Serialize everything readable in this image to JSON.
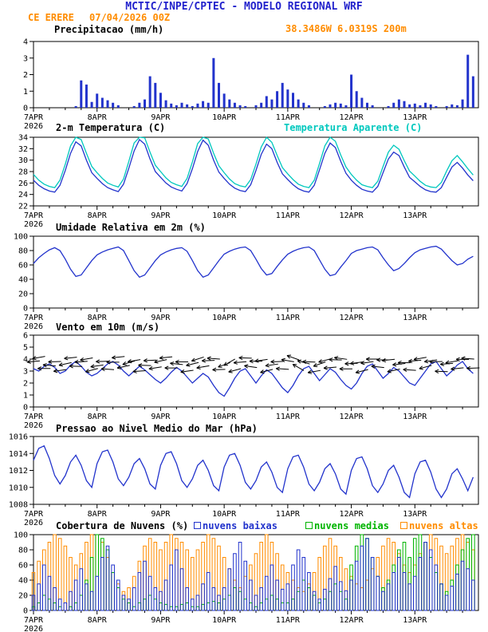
{
  "header": {
    "title": "MCTIC/INPE/CPTEC - MODELO REGIONAL WRF",
    "station": "CE ERERE",
    "run": "07/04/2026 00Z",
    "location": "38.3486W 6.0319S 200m"
  },
  "colors": {
    "header_blue": "#2222cc",
    "orange": "#ff8c00",
    "line_blue": "#2233cc",
    "cyan": "#00c8be",
    "green": "#00b400",
    "black": "#000000"
  },
  "xaxis": {
    "tick_hours": [
      0,
      24,
      48,
      72,
      96,
      120,
      144
    ],
    "labels": [
      "7APR",
      "8APR",
      "9APR",
      "10APR",
      "11APR",
      "12APR",
      "13APR"
    ],
    "year": "2026",
    "total_hours": 168,
    "minor_step": 6
  },
  "time_step_hours": 2,
  "chart_data": [
    {
      "type": "bar",
      "title": "Precipitacao (mm/h)",
      "ylabel": "mm/h",
      "ylim": [
        0,
        4
      ],
      "yticks": [
        0,
        1,
        2,
        3,
        4
      ],
      "color": "#2233cc",
      "values": [
        0,
        0,
        0,
        0,
        0,
        0,
        0,
        0,
        0.1,
        1.65,
        1.4,
        0.35,
        0.85,
        0.6,
        0.45,
        0.3,
        0.15,
        0,
        0,
        0.1,
        0.3,
        0.5,
        1.9,
        1.5,
        0.9,
        0.45,
        0.25,
        0.15,
        0.3,
        0.2,
        0.1,
        0.25,
        0.4,
        0.3,
        3.0,
        1.5,
        0.85,
        0.5,
        0.3,
        0.15,
        0.1,
        0,
        0.15,
        0.3,
        0.7,
        0.5,
        1.0,
        1.5,
        1.1,
        0.9,
        0.5,
        0.3,
        0.15,
        0,
        0,
        0.1,
        0.2,
        0.3,
        0.25,
        0.15,
        2.0,
        1.0,
        0.6,
        0.3,
        0.15,
        0,
        0,
        0.1,
        0.3,
        0.5,
        0.4,
        0.2,
        0.25,
        0.15,
        0.3,
        0.2,
        0.1,
        0,
        0.1,
        0.2,
        0.15,
        0.5,
        3.2,
        1.9
      ]
    },
    {
      "type": "line",
      "title": "2-m Temperatura (C)",
      "title_right": "Temperatura Aparente (C)",
      "ylim": [
        22,
        34
      ],
      "yticks": [
        22,
        24,
        26,
        28,
        30,
        32,
        34
      ],
      "series": [
        {
          "name": "2-m Temperatura (C)",
          "color": "#2233cc",
          "values": [
            26.5,
            25.6,
            25.0,
            24.6,
            24.4,
            25.6,
            28.2,
            31.2,
            33.2,
            32.5,
            30.0,
            27.8,
            26.8,
            25.9,
            25.2,
            24.8,
            24.5,
            25.8,
            28.6,
            31.6,
            33.6,
            32.8,
            30.2,
            28.0,
            27.0,
            26.0,
            25.3,
            24.9,
            24.6,
            25.9,
            28.5,
            31.5,
            33.5,
            32.6,
            30.0,
            27.9,
            26.8,
            25.8,
            25.1,
            24.7,
            24.5,
            25.7,
            28.2,
            31.0,
            32.8,
            32.0,
            29.6,
            27.6,
            26.6,
            25.7,
            25.0,
            24.6,
            24.4,
            25.6,
            28.3,
            31.2,
            33.0,
            32.2,
            29.8,
            27.7,
            26.5,
            25.6,
            24.9,
            24.6,
            24.4,
            25.4,
            27.8,
            30.2,
            31.4,
            30.8,
            28.8,
            27.0,
            26.2,
            25.4,
            24.8,
            24.5,
            24.4,
            25.2,
            27.0,
            28.8,
            29.6,
            28.6,
            27.4,
            26.4
          ]
        },
        {
          "name": "Temperatura Aparente (C)",
          "color": "#00c8be",
          "values": [
            27.5,
            26.5,
            25.8,
            25.4,
            25.2,
            26.5,
            29.3,
            32.5,
            34.2,
            33.6,
            31.2,
            28.9,
            27.8,
            26.8,
            26.0,
            25.6,
            25.3,
            26.7,
            29.8,
            33.0,
            34.3,
            33.9,
            31.4,
            29.1,
            28.0,
            26.9,
            26.1,
            25.7,
            25.4,
            26.8,
            29.7,
            32.9,
            34.3,
            33.7,
            31.2,
            29.0,
            27.8,
            26.7,
            25.9,
            25.5,
            25.3,
            26.6,
            29.3,
            32.3,
            34.0,
            33.1,
            30.8,
            28.7,
            27.6,
            26.6,
            25.8,
            25.4,
            25.2,
            26.5,
            29.4,
            32.5,
            34.1,
            33.3,
            30.9,
            28.8,
            27.5,
            26.5,
            25.7,
            25.4,
            25.2,
            26.3,
            28.9,
            31.4,
            32.6,
            31.9,
            29.9,
            28.1,
            27.2,
            26.3,
            25.6,
            25.3,
            25.2,
            26.1,
            28.1,
            29.9,
            30.8,
            29.7,
            28.5,
            27.4
          ]
        }
      ]
    },
    {
      "type": "line",
      "title": "Umidade Relativa em 2m (%)",
      "ylim": [
        0,
        100
      ],
      "yticks": [
        0,
        20,
        40,
        60,
        80,
        100
      ],
      "series": [
        {
          "name": "Umidade Relativa em 2m (%)",
          "color": "#2233cc",
          "values": [
            62,
            70,
            76,
            81,
            84,
            80,
            68,
            54,
            44,
            46,
            56,
            66,
            74,
            78,
            81,
            83,
            85,
            80,
            66,
            52,
            43,
            46,
            56,
            66,
            74,
            78,
            81,
            83,
            84,
            79,
            66,
            52,
            43,
            46,
            56,
            66,
            75,
            79,
            82,
            84,
            85,
            80,
            68,
            55,
            46,
            48,
            58,
            67,
            75,
            79,
            82,
            84,
            85,
            80,
            67,
            54,
            45,
            47,
            57,
            66,
            76,
            80,
            82,
            84,
            85,
            81,
            70,
            60,
            52,
            55,
            62,
            70,
            77,
            81,
            83,
            85,
            86,
            82,
            74,
            66,
            60,
            62,
            68,
            72
          ]
        }
      ]
    },
    {
      "type": "wind",
      "title": "Vento em 10m (m/s)",
      "ylim": [
        0,
        6
      ],
      "yticks": [
        0,
        1,
        2,
        3,
        4,
        5,
        6
      ],
      "line_color": "#2233cc",
      "arrow_color": "#000000",
      "speed": [
        3.2,
        3.0,
        3.4,
        3.6,
        3.3,
        2.8,
        3.0,
        3.5,
        3.8,
        3.4,
        2.9,
        2.6,
        2.8,
        3.2,
        3.6,
        3.8,
        3.5,
        3.0,
        2.6,
        3.0,
        3.4,
        3.1,
        2.7,
        2.3,
        2.0,
        2.4,
        2.9,
        3.3,
        3.0,
        2.5,
        2.0,
        2.4,
        2.8,
        2.5,
        1.8,
        1.2,
        0.9,
        1.6,
        2.4,
        3.0,
        3.2,
        2.6,
        2.0,
        2.6,
        3.1,
        2.8,
        2.2,
        1.6,
        1.2,
        1.8,
        2.6,
        3.2,
        3.4,
        2.8,
        2.2,
        2.7,
        3.2,
        2.9,
        2.3,
        1.8,
        1.5,
        2.0,
        2.8,
        3.4,
        3.6,
        3.0,
        2.4,
        2.8,
        3.3,
        3.0,
        2.5,
        2.0,
        1.8,
        2.4,
        3.0,
        3.6,
        3.8,
        3.2,
        2.6,
        3.0,
        3.5,
        3.8,
        3.2,
        2.8
      ],
      "dir_deg": [
        185,
        190,
        180,
        175,
        182,
        188,
        192,
        186,
        178,
        184,
        190,
        195,
        188,
        182,
        176,
        180,
        186,
        192,
        196,
        190,
        184,
        178,
        183,
        189,
        192,
        186,
        180,
        174,
        180,
        188,
        194,
        198,
        190,
        182,
        176,
        182,
        200,
        210,
        195,
        185,
        178,
        172,
        180,
        188,
        194,
        188,
        182,
        176,
        170,
        160,
        150,
        165,
        178,
        190,
        200,
        195,
        185,
        178,
        172,
        180,
        182,
        188,
        194,
        188,
        180,
        174,
        180,
        186,
        192,
        186,
        180,
        176,
        185,
        190,
        195,
        188,
        182,
        178,
        184,
        190,
        186,
        180,
        176,
        182
      ]
    },
    {
      "type": "line",
      "title": "Pressao ao Nivel Medio do Mar (hPa)",
      "ylim": [
        1008,
        1016
      ],
      "yticks": [
        1008,
        1010,
        1012,
        1014,
        1016
      ],
      "series": [
        {
          "name": "Pressao ao Nivel Medio do Mar (hPa)",
          "color": "#2233cc",
          "values": [
            1013.2,
            1014.6,
            1014.9,
            1013.4,
            1011.4,
            1010.4,
            1011.4,
            1013.0,
            1013.8,
            1012.6,
            1010.8,
            1010.0,
            1012.8,
            1014.2,
            1014.4,
            1013.0,
            1011.0,
            1010.2,
            1011.2,
            1012.8,
            1013.4,
            1012.2,
            1010.4,
            1009.8,
            1012.6,
            1014.0,
            1014.2,
            1012.8,
            1010.8,
            1010.0,
            1011.0,
            1012.6,
            1013.2,
            1012.0,
            1010.2,
            1009.6,
            1012.4,
            1013.8,
            1014.0,
            1012.6,
            1010.6,
            1009.8,
            1010.8,
            1012.4,
            1013.0,
            1011.8,
            1010.0,
            1009.4,
            1012.2,
            1013.6,
            1013.8,
            1012.4,
            1010.4,
            1009.6,
            1010.6,
            1012.2,
            1012.8,
            1011.6,
            1009.8,
            1009.2,
            1012.0,
            1013.4,
            1013.6,
            1012.2,
            1010.2,
            1009.4,
            1010.4,
            1012.0,
            1012.6,
            1011.2,
            1009.4,
            1008.8,
            1011.6,
            1013.0,
            1013.2,
            1011.8,
            1009.8,
            1008.8,
            1009.8,
            1011.6,
            1012.2,
            1011.0,
            1009.6,
            1011.2
          ]
        }
      ]
    },
    {
      "type": "clouds",
      "title": "Cobertura de Nuvens (%)",
      "ylim": [
        0,
        100
      ],
      "yticks": [
        0,
        20,
        40,
        60,
        80,
        100
      ],
      "legend": [
        {
          "label": "nuvens baixas",
          "color": "#2233cc"
        },
        {
          "label": "nuvens medias",
          "color": "#00b400"
        },
        {
          "label": "nuvens altas",
          "color": "#ff8c00"
        }
      ],
      "series": [
        {
          "name": "nuvens baixas",
          "color": "#2233cc",
          "values": [
            20,
            35,
            60,
            45,
            30,
            15,
            10,
            25,
            40,
            55,
            35,
            25,
            45,
            70,
            85,
            60,
            40,
            20,
            15,
            30,
            50,
            65,
            45,
            30,
            25,
            40,
            60,
            80,
            55,
            30,
            15,
            20,
            35,
            50,
            30,
            20,
            30,
            55,
            75,
            90,
            65,
            40,
            20,
            30,
            45,
            60,
            40,
            28,
            35,
            60,
            80,
            70,
            50,
            25,
            15,
            28,
            42,
            58,
            38,
            26,
            40,
            65,
            85,
            95,
            70,
            45,
            25,
            35,
            50,
            70,
            50,
            35,
            45,
            70,
            90,
            80,
            60,
            35,
            20,
            32,
            48,
            65,
            55,
            40
          ]
        },
        {
          "name": "nuvens medias",
          "color": "#00b400",
          "values": [
            5,
            10,
            20,
            15,
            10,
            5,
            0,
            5,
            10,
            20,
            40,
            70,
            100,
            95,
            80,
            50,
            30,
            15,
            10,
            5,
            10,
            15,
            20,
            15,
            10,
            8,
            5,
            5,
            8,
            10,
            5,
            5,
            8,
            10,
            12,
            10,
            15,
            20,
            30,
            25,
            15,
            10,
            5,
            10,
            15,
            20,
            15,
            10,
            10,
            15,
            25,
            40,
            30,
            20,
            10,
            15,
            25,
            35,
            25,
            15,
            60,
            85,
            100,
            95,
            70,
            45,
            30,
            40,
            60,
            80,
            90,
            70,
            95,
            100,
            90,
            70,
            50,
            35,
            25,
            40,
            60,
            80,
            95,
            100
          ]
        },
        {
          "name": "nuvens altas",
          "color": "#ff8c00",
          "values": [
            50,
            65,
            80,
            90,
            100,
            95,
            85,
            70,
            60,
            75,
            90,
            100,
            100,
            90,
            70,
            50,
            35,
            25,
            30,
            45,
            65,
            85,
            95,
            90,
            80,
            90,
            100,
            95,
            90,
            80,
            70,
            80,
            90,
            100,
            95,
            85,
            70,
            55,
            40,
            30,
            45,
            60,
            75,
            90,
            100,
            90,
            75,
            60,
            50,
            40,
            30,
            25,
            35,
            50,
            70,
            85,
            95,
            85,
            70,
            55,
            45,
            35,
            30,
            40,
            55,
            70,
            85,
            95,
            90,
            75,
            60,
            50,
            60,
            75,
            90,
            100,
            95,
            85,
            75,
            85,
            95,
            100,
            90,
            80
          ]
        }
      ]
    }
  ]
}
